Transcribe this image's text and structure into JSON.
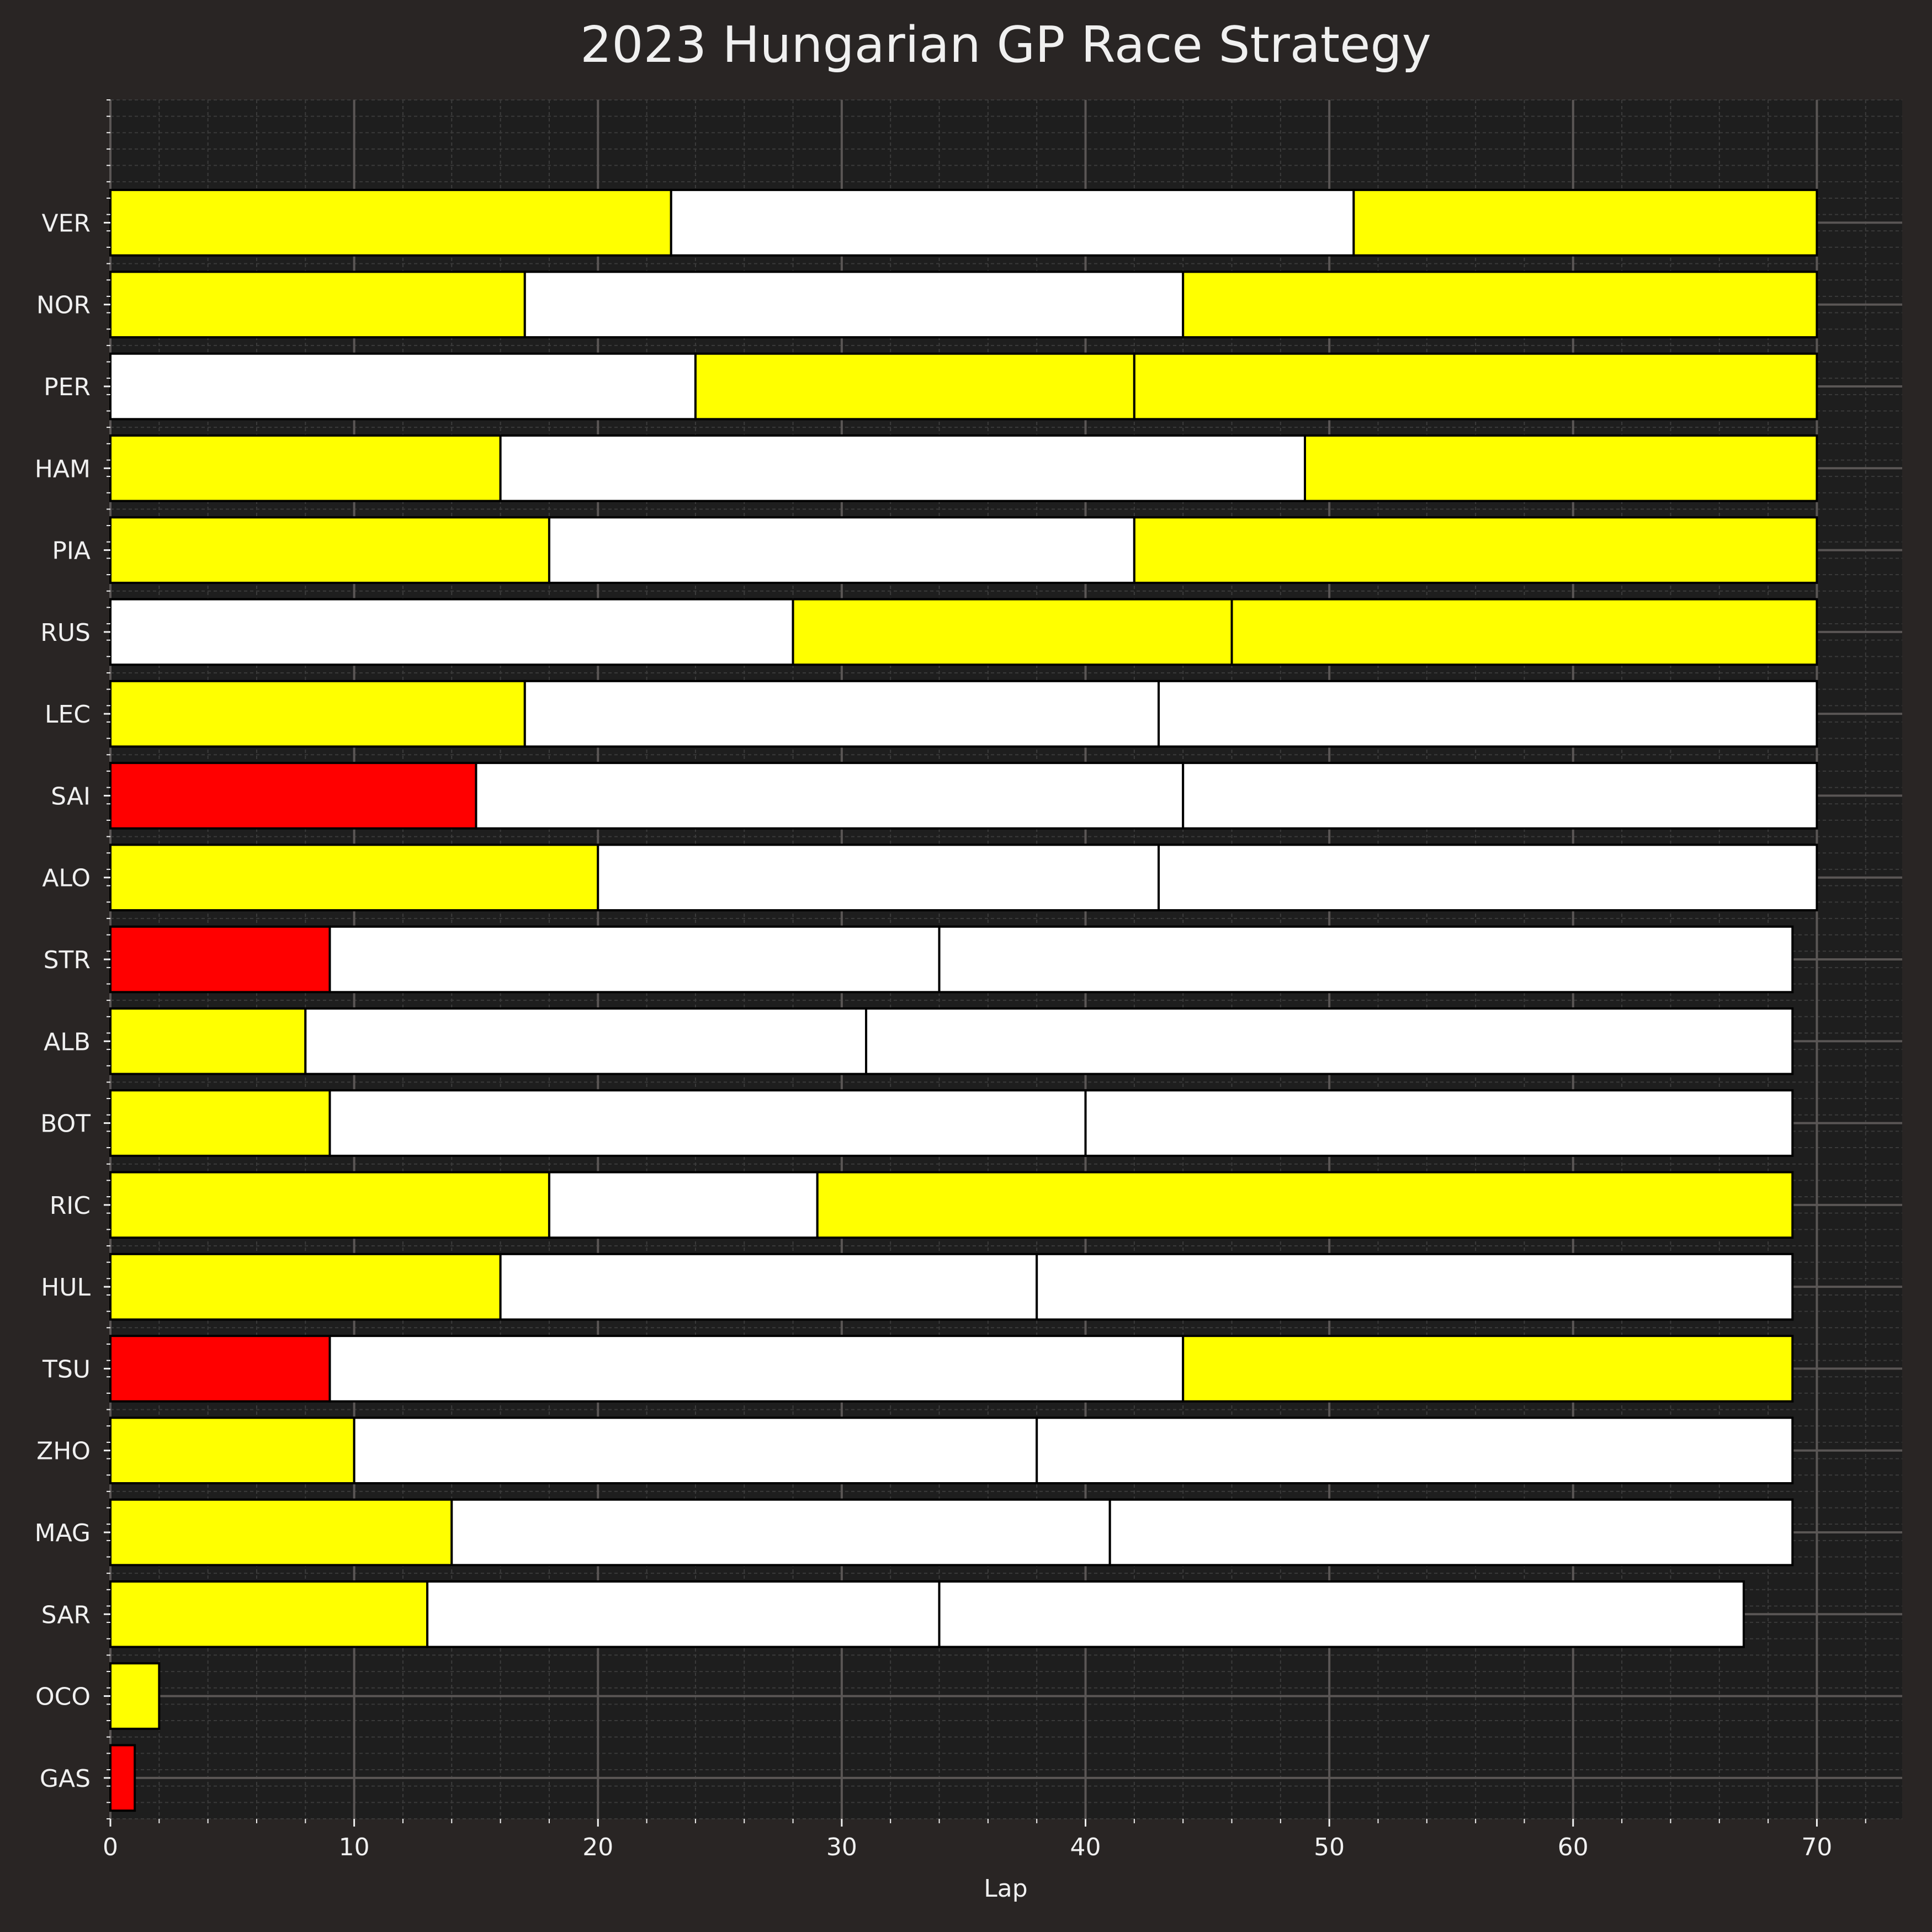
{
  "chart_data": {
    "type": "bar",
    "orientation": "horizontal-stacked",
    "title": "2023 Hungarian GP Race Strategy",
    "xlabel": "Lap",
    "ylabel": "",
    "xlim": [
      0,
      73.5
    ],
    "xticks": [
      0,
      10,
      20,
      30,
      40,
      50,
      60,
      70
    ],
    "grid": true,
    "colors": {
      "background": "#292524",
      "plot_background": "#1e1e1e",
      "text": "#f0f0f0",
      "yellow": "#ffff00",
      "white": "#ffffff",
      "red": "#ff0000"
    },
    "drivers": [
      {
        "name": "VER",
        "stints": [
          {
            "start": 0,
            "end": 23,
            "color": "yellow"
          },
          {
            "start": 23,
            "end": 51,
            "color": "white"
          },
          {
            "start": 51,
            "end": 70,
            "color": "yellow"
          }
        ]
      },
      {
        "name": "NOR",
        "stints": [
          {
            "start": 0,
            "end": 17,
            "color": "yellow"
          },
          {
            "start": 17,
            "end": 44,
            "color": "white"
          },
          {
            "start": 44,
            "end": 70,
            "color": "yellow"
          }
        ]
      },
      {
        "name": "PER",
        "stints": [
          {
            "start": 0,
            "end": 24,
            "color": "white"
          },
          {
            "start": 24,
            "end": 42,
            "color": "yellow"
          },
          {
            "start": 42,
            "end": 70,
            "color": "yellow"
          }
        ]
      },
      {
        "name": "HAM",
        "stints": [
          {
            "start": 0,
            "end": 16,
            "color": "yellow"
          },
          {
            "start": 16,
            "end": 49,
            "color": "white"
          },
          {
            "start": 49,
            "end": 70,
            "color": "yellow"
          }
        ]
      },
      {
        "name": "PIA",
        "stints": [
          {
            "start": 0,
            "end": 18,
            "color": "yellow"
          },
          {
            "start": 18,
            "end": 42,
            "color": "white"
          },
          {
            "start": 42,
            "end": 70,
            "color": "yellow"
          }
        ]
      },
      {
        "name": "RUS",
        "stints": [
          {
            "start": 0,
            "end": 28,
            "color": "white"
          },
          {
            "start": 28,
            "end": 46,
            "color": "yellow"
          },
          {
            "start": 46,
            "end": 70,
            "color": "yellow"
          }
        ]
      },
      {
        "name": "LEC",
        "stints": [
          {
            "start": 0,
            "end": 17,
            "color": "yellow"
          },
          {
            "start": 17,
            "end": 43,
            "color": "white"
          },
          {
            "start": 43,
            "end": 70,
            "color": "white"
          }
        ]
      },
      {
        "name": "SAI",
        "stints": [
          {
            "start": 0,
            "end": 15,
            "color": "red"
          },
          {
            "start": 15,
            "end": 44,
            "color": "white"
          },
          {
            "start": 44,
            "end": 70,
            "color": "white"
          }
        ]
      },
      {
        "name": "ALO",
        "stints": [
          {
            "start": 0,
            "end": 20,
            "color": "yellow"
          },
          {
            "start": 20,
            "end": 43,
            "color": "white"
          },
          {
            "start": 43,
            "end": 70,
            "color": "white"
          }
        ]
      },
      {
        "name": "STR",
        "stints": [
          {
            "start": 0,
            "end": 9,
            "color": "red"
          },
          {
            "start": 9,
            "end": 34,
            "color": "white"
          },
          {
            "start": 34,
            "end": 69,
            "color": "white"
          }
        ]
      },
      {
        "name": "ALB",
        "stints": [
          {
            "start": 0,
            "end": 8,
            "color": "yellow"
          },
          {
            "start": 8,
            "end": 31,
            "color": "white"
          },
          {
            "start": 31,
            "end": 69,
            "color": "white"
          }
        ]
      },
      {
        "name": "BOT",
        "stints": [
          {
            "start": 0,
            "end": 9,
            "color": "yellow"
          },
          {
            "start": 9,
            "end": 40,
            "color": "white"
          },
          {
            "start": 40,
            "end": 69,
            "color": "white"
          }
        ]
      },
      {
        "name": "RIC",
        "stints": [
          {
            "start": 0,
            "end": 18,
            "color": "yellow"
          },
          {
            "start": 18,
            "end": 29,
            "color": "white"
          },
          {
            "start": 29,
            "end": 69,
            "color": "yellow"
          }
        ]
      },
      {
        "name": "HUL",
        "stints": [
          {
            "start": 0,
            "end": 16,
            "color": "yellow"
          },
          {
            "start": 16,
            "end": 38,
            "color": "white"
          },
          {
            "start": 38,
            "end": 69,
            "color": "white"
          }
        ]
      },
      {
        "name": "TSU",
        "stints": [
          {
            "start": 0,
            "end": 9,
            "color": "red"
          },
          {
            "start": 9,
            "end": 44,
            "color": "white"
          },
          {
            "start": 44,
            "end": 69,
            "color": "yellow"
          }
        ]
      },
      {
        "name": "ZHO",
        "stints": [
          {
            "start": 0,
            "end": 10,
            "color": "yellow"
          },
          {
            "start": 10,
            "end": 38,
            "color": "white"
          },
          {
            "start": 38,
            "end": 69,
            "color": "white"
          }
        ]
      },
      {
        "name": "MAG",
        "stints": [
          {
            "start": 0,
            "end": 14,
            "color": "yellow"
          },
          {
            "start": 14,
            "end": 41,
            "color": "white"
          },
          {
            "start": 41,
            "end": 69,
            "color": "white"
          }
        ]
      },
      {
        "name": "SAR",
        "stints": [
          {
            "start": 0,
            "end": 13,
            "color": "yellow"
          },
          {
            "start": 13,
            "end": 34,
            "color": "white"
          },
          {
            "start": 34,
            "end": 67,
            "color": "white"
          }
        ]
      },
      {
        "name": "OCO",
        "stints": [
          {
            "start": 0,
            "end": 2,
            "color": "yellow"
          }
        ]
      },
      {
        "name": "GAS",
        "stints": [
          {
            "start": 0,
            "end": 1,
            "color": "red"
          }
        ]
      }
    ]
  }
}
